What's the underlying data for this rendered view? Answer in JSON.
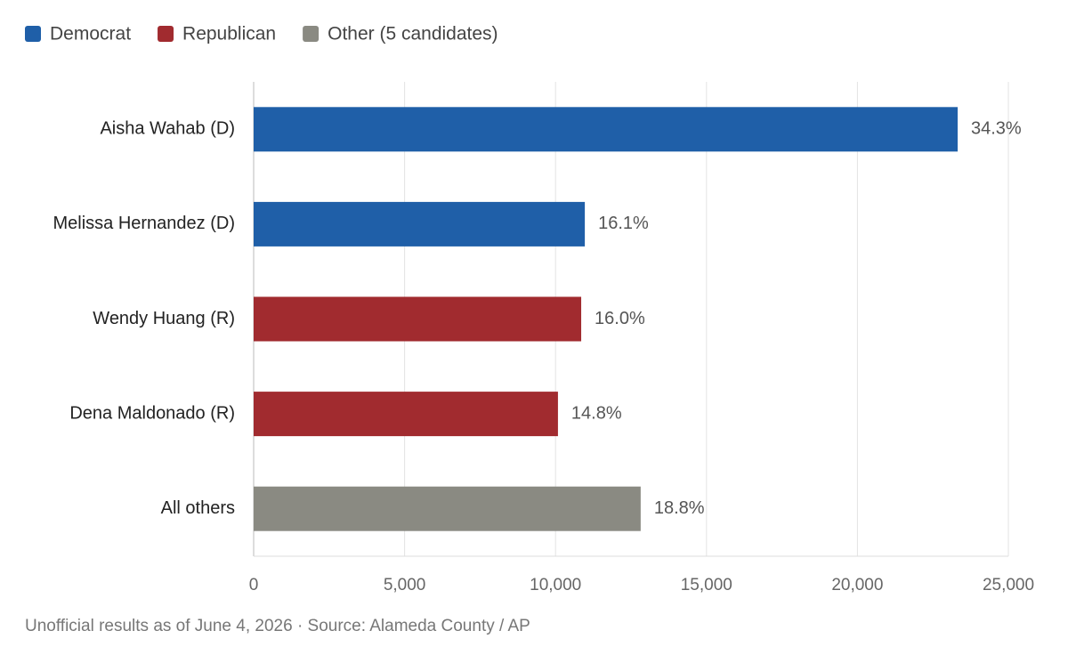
{
  "chart_data": {
    "type": "hbar",
    "legend": [
      {
        "name": "Democrat",
        "color": "#1f5fa8"
      },
      {
        "name": "Republican",
        "color": "#a12b2f"
      },
      {
        "name": "Other (5 candidates)",
        "color": "#8a8a82"
      }
    ],
    "categories": [
      "Aisha Wahab (D)",
      "Melissa Hernandez (D)",
      "Wendy Huang (R)",
      "Dena Maldonado (R)",
      "All others"
    ],
    "values": [
      23320,
      10970,
      10850,
      10080,
      12820
    ],
    "share_labels": [
      "34.3%",
      "16.1%",
      "16.0%",
      "14.8%",
      "18.8%"
    ],
    "colors": [
      "#1f5fa8",
      "#1f5fa8",
      "#a12b2f",
      "#a12b2f",
      "#8a8a82"
    ],
    "xlim": [
      0,
      25000
    ],
    "xticks": [
      0,
      {
        "value": 5000,
        "label": "5,000"
      },
      {
        "value": 10000,
        "label": "10,000"
      },
      {
        "value": 15000,
        "label": "15,000"
      },
      {
        "value": 20000,
        "label": "20,000"
      },
      {
        "value": 25000,
        "label": "25,000"
      }
    ],
    "grid": true,
    "footnote": "Unofficial results as of June 4, 2026 · Source: Alameda County / AP"
  }
}
